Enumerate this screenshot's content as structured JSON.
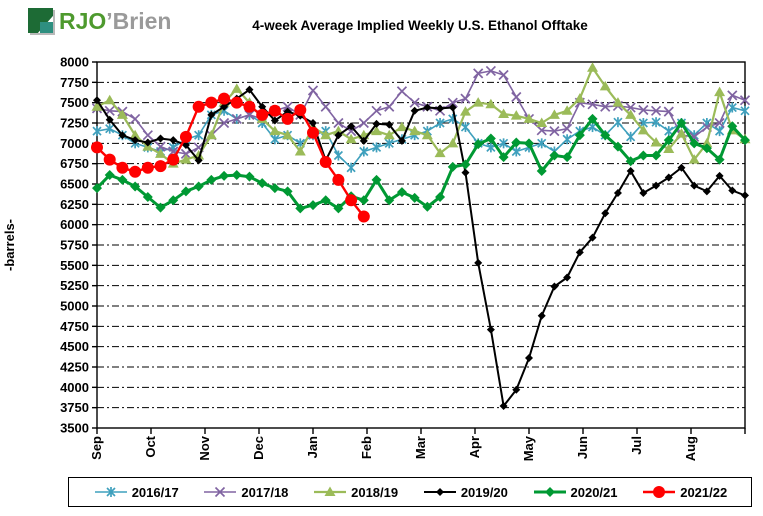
{
  "logo": {
    "primary": "RJO",
    "secondary": "’Brien"
  },
  "title": "4-week Average Implied  Weekly U.S. Ethanol Offtake",
  "chart_data": {
    "type": "line",
    "title": "4-week Average Implied Weekly U.S. Ethanol Offtake",
    "xlabel": "",
    "ylabel": "-barrels-",
    "ylim": [
      3500,
      8000
    ],
    "ytick_step": 250,
    "ytick_labels": [
      "8000",
      "7750",
      "7500",
      "7250",
      "7000",
      "6750",
      "6500",
      "6250",
      "6000",
      "5750",
      "5500",
      "5250",
      "5000",
      "4750",
      "4500",
      "4250",
      "4000",
      "3750",
      "3500"
    ],
    "x_categories": [
      "Sep",
      "Oct",
      "Nov",
      "Dec",
      "Jan",
      "Feb",
      "Mar",
      "Apr",
      "May",
      "Jun",
      "Jul",
      "Aug"
    ],
    "grid": "horizontal dashed",
    "legend_position": "bottom",
    "points_per_year": 52,
    "series": [
      {
        "name": "2016/17",
        "color": "#3fa0bd",
        "marker": "star6",
        "line_width": 1.6,
        "values": [
          7150,
          7180,
          7100,
          7000,
          6950,
          6900,
          6950,
          7050,
          7100,
          7350,
          7400,
          7300,
          7350,
          7250,
          7050,
          7100,
          7000,
          7100,
          7150,
          6850,
          6700,
          6900,
          6950,
          7000,
          7050,
          7100,
          7150,
          7250,
          7300,
          7200,
          7000,
          6950,
          7000,
          6900,
          6950,
          7000,
          6900,
          7050,
          7150,
          7200,
          7100,
          7260,
          7080,
          7250,
          7260,
          7150,
          7250,
          7100,
          7250,
          7150,
          7440,
          7400
        ]
      },
      {
        "name": "2017/18",
        "color": "#8064a2",
        "marker": "x4",
        "line_width": 1.6,
        "values": [
          7430,
          7400,
          7390,
          7300,
          7100,
          6960,
          6900,
          6870,
          6950,
          7100,
          7250,
          7300,
          7350,
          7300,
          7400,
          7450,
          7350,
          7650,
          7450,
          7250,
          7150,
          7250,
          7400,
          7450,
          7640,
          7500,
          7450,
          7400,
          7500,
          7550,
          7860,
          7890,
          7840,
          7570,
          7300,
          7160,
          7150,
          7180,
          7500,
          7480,
          7450,
          7460,
          7440,
          7410,
          7400,
          7390,
          7100,
          7080,
          7200,
          7250,
          7590,
          7530
        ]
      },
      {
        "name": "2018/19",
        "color": "#9bbb59",
        "marker": "triangle",
        "line_width": 2.2,
        "values": [
          7450,
          7530,
          7350,
          7100,
          6960,
          6870,
          6750,
          6800,
          6850,
          7100,
          7500,
          7670,
          7500,
          7300,
          7150,
          7100,
          6900,
          7200,
          7100,
          7150,
          7050,
          7100,
          7150,
          7100,
          7200,
          7150,
          7100,
          6880,
          7000,
          7390,
          7500,
          7480,
          7360,
          7340,
          7300,
          7250,
          7350,
          7400,
          7550,
          7930,
          7700,
          7500,
          7350,
          7160,
          7010,
          6930,
          7120,
          6800,
          7000,
          7630,
          7160,
          7050
        ]
      },
      {
        "name": "2019/20",
        "color": "#000000",
        "marker": "diamond-small",
        "line_width": 2,
        "values": [
          7530,
          7290,
          7100,
          7040,
          7010,
          7060,
          7040,
          6980,
          6790,
          7350,
          7450,
          7550,
          7660,
          7450,
          7280,
          7390,
          7340,
          7250,
          6790,
          7100,
          7210,
          7030,
          7240,
          7230,
          7030,
          7400,
          7440,
          7430,
          7440,
          6640,
          5530,
          4710,
          3770,
          3970,
          4360,
          4880,
          5240,
          5350,
          5660,
          5840,
          6140,
          6390,
          6660,
          6390,
          6480,
          6580,
          6700,
          6480,
          6410,
          6600,
          6420,
          6360
        ]
      },
      {
        "name": "2020/21",
        "color": "#009933",
        "marker": "diamond",
        "line_width": 3,
        "values": [
          6450,
          6610,
          6550,
          6470,
          6340,
          6210,
          6300,
          6410,
          6470,
          6550,
          6600,
          6610,
          6590,
          6510,
          6450,
          6410,
          6200,
          6240,
          6300,
          6200,
          6350,
          6300,
          6550,
          6300,
          6400,
          6330,
          6220,
          6340,
          6710,
          6740,
          6990,
          7060,
          6830,
          7010,
          7000,
          6660,
          6850,
          6830,
          7100,
          7300,
          7100,
          6960,
          6780,
          6850,
          6850,
          7040,
          7250,
          7000,
          6940,
          6800,
          7210,
          7040
        ]
      },
      {
        "name": "2021/22",
        "color": "#ff0000",
        "marker": "circle",
        "line_width": 2.4,
        "values": [
          6950,
          6800,
          6700,
          6650,
          6700,
          6720,
          6800,
          7080,
          7450,
          7500,
          7550,
          7500,
          7450,
          7350,
          7400,
          7300,
          7410,
          7130,
          6770,
          6550,
          6300,
          6100
        ]
      }
    ]
  }
}
